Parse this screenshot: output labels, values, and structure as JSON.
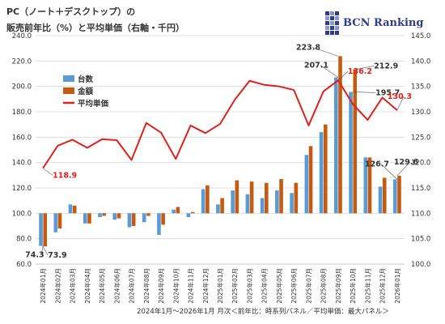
{
  "title": {
    "line1": "PC（ノート＋デスクトップ）の",
    "line2": "販売前年比（%）と平均単価（右軸・千円）"
  },
  "brand": {
    "name": "BCN Ranking",
    "logo_icon": "bcn-grid-logo-icon",
    "color": "#2f3c8c"
  },
  "footer": {
    "caption": "2024年1月～2026年1月 月次＜前年比：時系列パネル／平均単価：最大パネル＞"
  },
  "colors": {
    "units": "#5b9bd5",
    "amount": "#c55a11",
    "price": "#e0201b",
    "grid": "#d9d9d9",
    "label_highlight": "#e0201b"
  },
  "chart_data": {
    "type": "bar",
    "categories": [
      "2024年01月",
      "2024年02月",
      "2024年03月",
      "2024年04月",
      "2024年05月",
      "2024年06月",
      "2024年07月",
      "2024年08月",
      "2024年09月",
      "2024年10月",
      "2024年11月",
      "2024年12月",
      "2025年01月",
      "2025年02月",
      "2025年03月",
      "2025年04月",
      "2025年05月",
      "2025年06月",
      "2025年07月",
      "2025年08月",
      "2025年09月",
      "2025年10月",
      "2025年11月",
      "2025年12月",
      "2026年01月"
    ],
    "series": [
      {
        "name": "台数",
        "axis": "left",
        "kind": "bar",
        "values": [
          74.3,
          85,
          107,
          92,
          97,
          95,
          89,
          93,
          83,
          103,
          97,
          119,
          107,
          118,
          115,
          112,
          118,
          116,
          146,
          164,
          207.1,
          195.7,
          144,
          121,
          126.7
        ]
      },
      {
        "name": "金額",
        "axis": "left",
        "kind": "bar",
        "values": [
          73.9,
          88,
          106,
          92,
          98,
          96,
          90,
          98,
          91,
          105,
          101,
          122,
          112,
          126,
          125,
          124,
          127,
          124,
          153,
          170,
          223.8,
          212.9,
          144,
          128,
          129.6
        ]
      },
      {
        "name": "平均単価",
        "axis": "right",
        "kind": "line",
        "values": [
          118.9,
          123.3,
          124.5,
          122.9,
          124.6,
          124.4,
          120.5,
          127.8,
          125.9,
          120.7,
          127.3,
          125.8,
          127.6,
          132.4,
          136.1,
          135.3,
          135.0,
          134.3,
          127.3,
          134.0,
          136.2,
          131.5,
          128.4,
          132.8,
          130.3
        ]
      }
    ],
    "y_left": {
      "min": 60,
      "max": 240,
      "step": 20,
      "ticks": [
        "60.0",
        "80.0",
        "100.0",
        "120.0",
        "140.0",
        "160.0",
        "180.0",
        "200.0",
        "220.0",
        "240.0"
      ]
    },
    "y_right": {
      "min": 100,
      "max": 145,
      "step": 5,
      "ticks": [
        "100.0",
        "105.0",
        "110.0",
        "115.0",
        "120.0",
        "125.0",
        "130.0",
        "135.0",
        "140.0",
        "145.0"
      ]
    },
    "baseline": 100,
    "grid": true,
    "legend_position": "top-left",
    "annotations": [
      {
        "text": "74.3",
        "series": 0,
        "index": 0,
        "color": "dark"
      },
      {
        "text": "73.9",
        "series": 1,
        "index": 0,
        "color": "dark"
      },
      {
        "text": "118.9",
        "series": 2,
        "index": 0,
        "color": "red"
      },
      {
        "text": "223.8",
        "series": 1,
        "index": 20,
        "color": "dark"
      },
      {
        "text": "207.1",
        "series": 0,
        "index": 20,
        "color": "dark"
      },
      {
        "text": "136.2",
        "series": 2,
        "index": 20,
        "color": "red"
      },
      {
        "text": "212.9",
        "series": 1,
        "index": 21,
        "color": "dark"
      },
      {
        "text": "195.7",
        "series": 0,
        "index": 21,
        "color": "dark"
      },
      {
        "text": "126.7",
        "series": 0,
        "index": 24,
        "color": "dark"
      },
      {
        "text": "129.6",
        "series": 1,
        "index": 24,
        "color": "dark"
      },
      {
        "text": "130.3",
        "series": 2,
        "index": 24,
        "color": "red"
      }
    ]
  }
}
